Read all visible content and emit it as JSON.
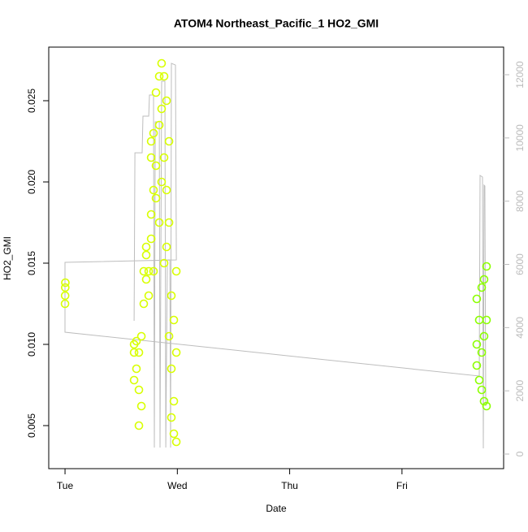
{
  "chart_data": {
    "type": "scatter",
    "title": "ATOM4 Northeast_Pacific_1 HO2_GMI",
    "xlabel": "Date",
    "ylabel": "HO2_GMI",
    "xlim": [
      -0.145,
      3.905
    ],
    "ylim": [
      0.00235,
      0.0283
    ],
    "y2lim": [
      -462,
      12874
    ],
    "xticks": [
      {
        "value": 0,
        "label": "Tue"
      },
      {
        "value": 1,
        "label": "Wed"
      },
      {
        "value": 2,
        "label": "Thu"
      },
      {
        "value": 3,
        "label": "Fri"
      }
    ],
    "yticks": [
      0.005,
      {
        "value": 0.01,
        "label": "0.010"
      },
      0.015,
      {
        "value": 0.02,
        "label": "0.020"
      },
      0.025
    ],
    "y2ticks": [
      0,
      2000,
      4000,
      6000,
      8000,
      10000,
      12000
    ],
    "series": [
      {
        "type": "scatter",
        "color": "#d8ff00",
        "x": [
          0,
          0.001,
          0.002,
          0.003,
          0.615,
          0.615,
          0.615,
          0.636,
          0.636,
          0.658,
          0.658,
          0.658,
          0.68,
          0.68,
          0.701,
          0.701,
          0.723,
          0.723,
          0.723,
          0.745,
          0.745,
          0.767,
          0.767,
          0.767,
          0.767,
          0.788,
          0.788,
          0.788,
          0.81,
          0.81,
          0.81,
          0.839,
          0.839,
          0.839,
          0.86,
          0.86,
          0.86,
          0.882,
          0.882,
          0.882,
          0.904,
          0.904,
          0.904,
          0.926,
          0.926,
          0.926,
          0.947,
          0.947,
          0.947,
          0.969,
          0.969,
          0.969,
          0.991,
          0.991,
          0.991
        ],
        "values": [
          0.0125,
          0.013,
          0.0135,
          0.0138,
          0.0078,
          0.0095,
          0.01,
          0.0085,
          0.0102,
          0.005,
          0.0072,
          0.0095,
          0.0062,
          0.0105,
          0.0125,
          0.0145,
          0.016,
          0.014,
          0.0155,
          0.013,
          0.0145,
          0.0165,
          0.0215,
          0.0225,
          0.018,
          0.0195,
          0.023,
          0.0145,
          0.021,
          0.0255,
          0.019,
          0.0265,
          0.0235,
          0.0175,
          0.0273,
          0.0245,
          0.02,
          0.0265,
          0.0215,
          0.015,
          0.025,
          0.0195,
          0.016,
          0.0225,
          0.0105,
          0.0175,
          0.0085,
          0.013,
          0.0055,
          0.0045,
          0.0115,
          0.0065,
          0.004,
          0.0145,
          0.0095
        ]
      },
      {
        "type": "scatter",
        "color": "#8cff00",
        "x": [
          3.666,
          3.666,
          3.666,
          3.688,
          3.688,
          3.71,
          3.71,
          3.71,
          3.731,
          3.731,
          3.731,
          3.753,
          3.753,
          3.753
        ],
        "values": [
          0.0128,
          0.01,
          0.0087,
          0.0115,
          0.0078,
          0.0135,
          0.0095,
          0.0072,
          0.014,
          0.0065,
          0.0105,
          0.0148,
          0.0062,
          0.0115
        ]
      },
      {
        "type": "line",
        "axis": "y2",
        "color": "#bdbdbd",
        "x": [
          0.615,
          0.622,
          0.687,
          0.694,
          0.745,
          0.752,
          0.788,
          0.795,
          0.803,
          0.839,
          0.846,
          0.86,
          0.889,
          0.897,
          0.911,
          0.933,
          0.94,
          0.947,
          0.983,
          0.991,
          0,
          0,
          3.688,
          3.695,
          3.717,
          3.724,
          3.731,
          3.738,
          3.746
        ],
        "values": [
          4214,
          9532,
          9532,
          10689,
          10689,
          11357,
          11357,
          206,
          10509,
          10509,
          206,
          11794,
          11794,
          206,
          6141,
          6141,
          206,
          12359,
          12307,
          6141,
          6064,
          3854,
          2467,
          8813,
          8762,
          180,
          8505,
          8479,
          1516
        ]
      }
    ]
  }
}
